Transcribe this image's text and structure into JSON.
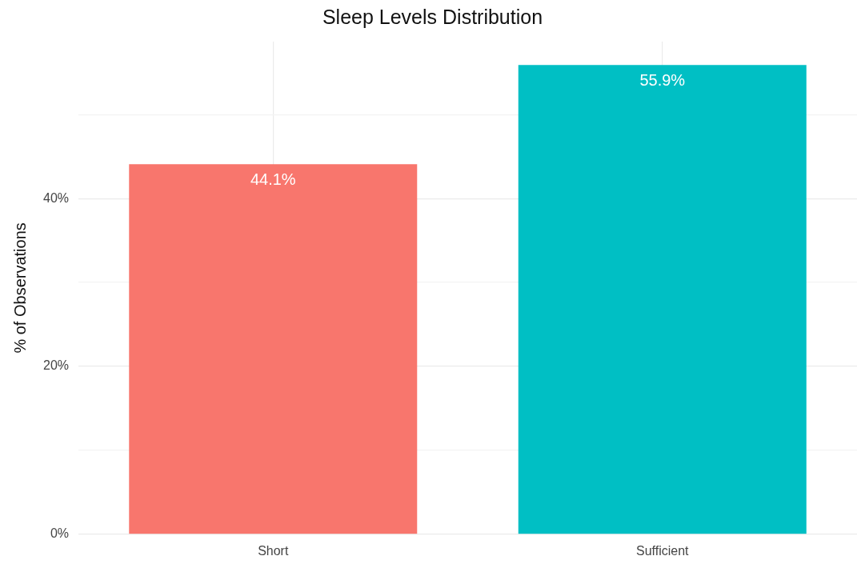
{
  "chart_data": {
    "type": "bar",
    "title": "Sleep Levels Distribution",
    "ylabel": "% of Observations",
    "categories": [
      "Short",
      "Sufficient"
    ],
    "values": [
      44.1,
      55.9
    ],
    "colors": [
      "#f8766d",
      "#00bfc4"
    ],
    "value_labels": [
      "44.1%",
      "55.9%"
    ],
    "ylim": [
      0,
      58.7
    ],
    "yticks": [
      {
        "value": 0,
        "label": "0%"
      },
      {
        "value": 10,
        "label": null
      },
      {
        "value": 20,
        "label": "20%"
      },
      {
        "value": 30,
        "label": null
      },
      {
        "value": 40,
        "label": "40%"
      },
      {
        "value": 50,
        "label": null
      }
    ],
    "grid": true,
    "legend": false
  }
}
